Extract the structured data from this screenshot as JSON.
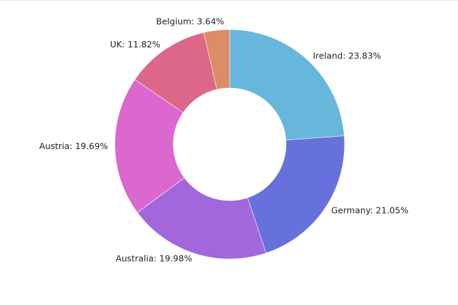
{
  "chart_data": {
    "type": "pie",
    "donut": true,
    "legend": "none",
    "slices": [
      {
        "label": "Ireland",
        "value": 23.83,
        "display": "Ireland: 23.83%",
        "color": "#67b7dc"
      },
      {
        "label": "Germany",
        "value": 21.05,
        "display": "Germany: 21.05%",
        "color": "#6771dc"
      },
      {
        "label": "Australia",
        "value": 19.98,
        "display": "Australia: 19.98%",
        "color": "#a367dc"
      },
      {
        "label": "Austria",
        "value": 19.69,
        "display": "Austria: 19.69%",
        "color": "#dc67ce"
      },
      {
        "label": "UK",
        "value": 11.82,
        "display": "UK: 11.82%",
        "color": "#dc6788"
      },
      {
        "label": "Belgium",
        "value": 3.64,
        "display": "Belgium: 3.64%",
        "color": "#dc8c67"
      }
    ]
  }
}
